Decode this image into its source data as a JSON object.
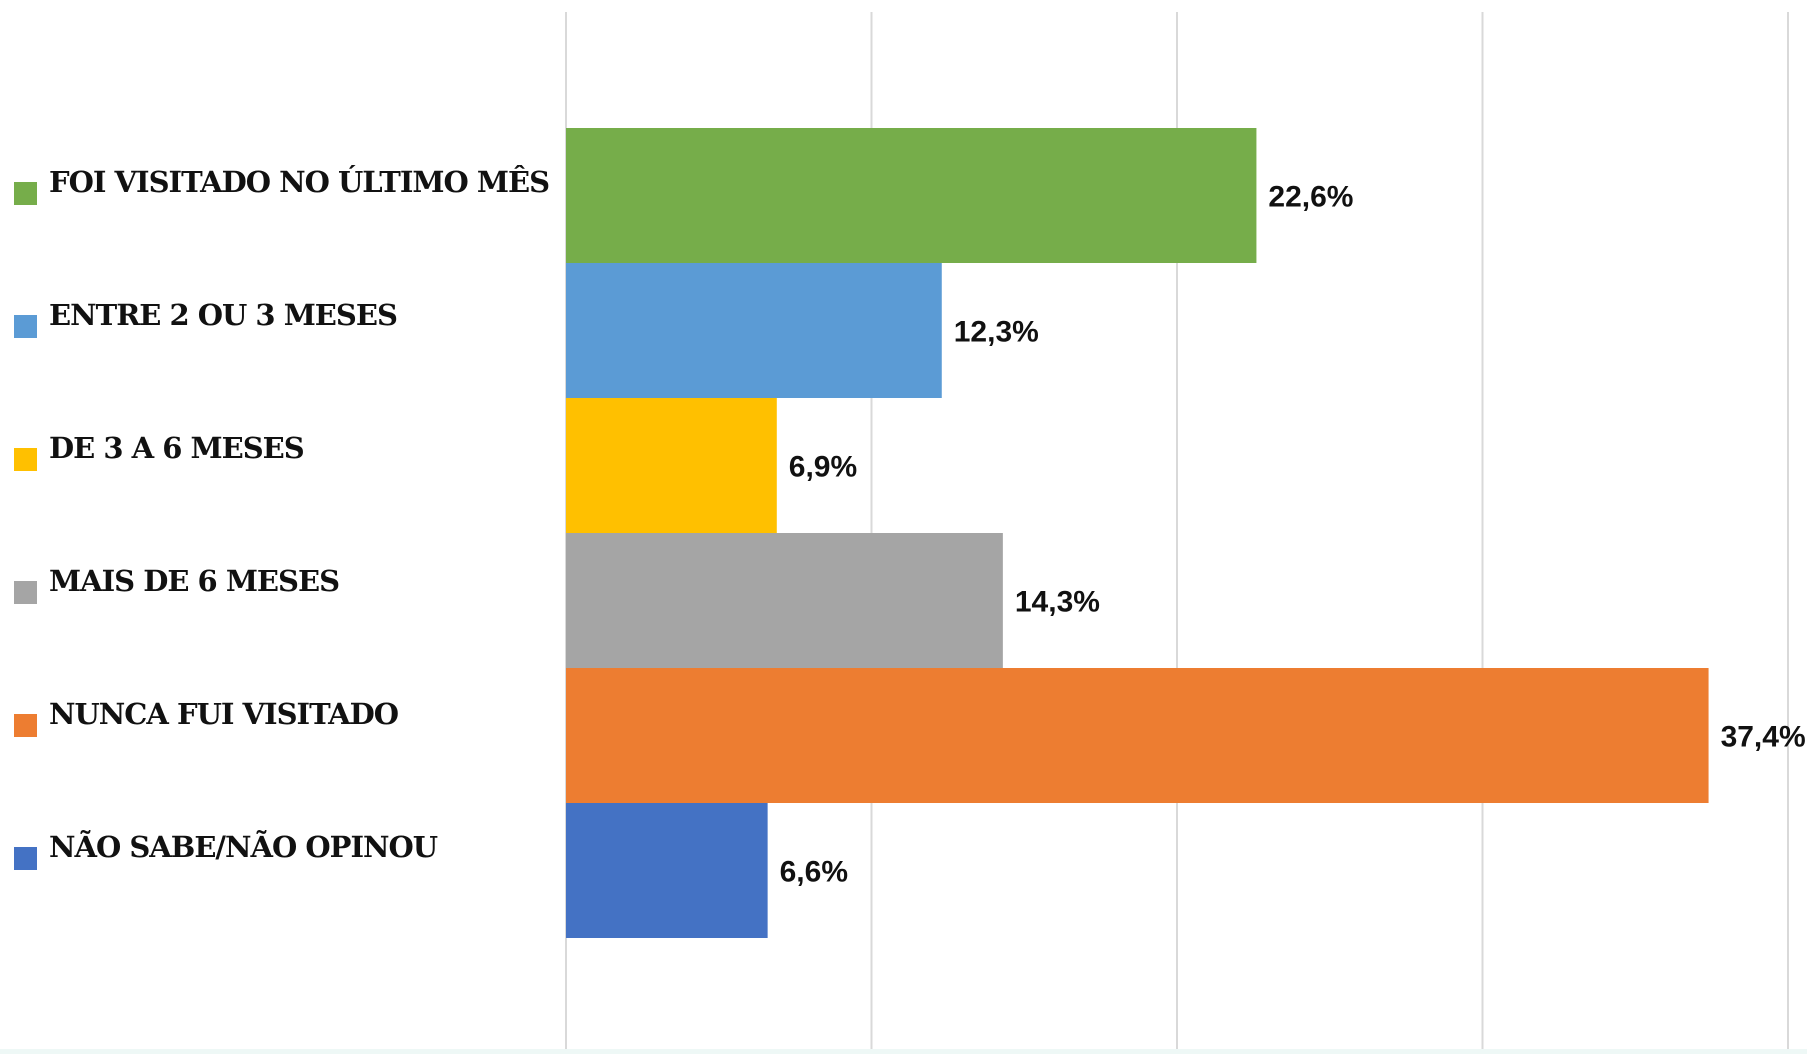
{
  "chart_data": {
    "type": "bar",
    "orientation": "horizontal",
    "categories": [
      "FOI VISITADO NO ÚLTIMO MÊS",
      "ENTRE 2 OU 3 MESES",
      "DE 3 A 6 MESES",
      "MAIS DE 6 MESES",
      "NUNCA FUI VISITADO",
      "NÃO SABE/NÃO OPINOU"
    ],
    "values": [
      22.6,
      12.3,
      6.9,
      14.3,
      37.4,
      6.6
    ],
    "value_labels": [
      "22,6%",
      "12,3%",
      "6,9%",
      "14,3%",
      "37,4%",
      "6,6%"
    ],
    "colors": [
      "#76ad4a",
      "#5b9bd5",
      "#ffc000",
      "#a5a5a5",
      "#ed7d31",
      "#4472c4"
    ],
    "xlim": [
      0,
      40
    ],
    "grid": true,
    "legend_position": "left",
    "title": "",
    "xlabel": "",
    "ylabel": ""
  }
}
